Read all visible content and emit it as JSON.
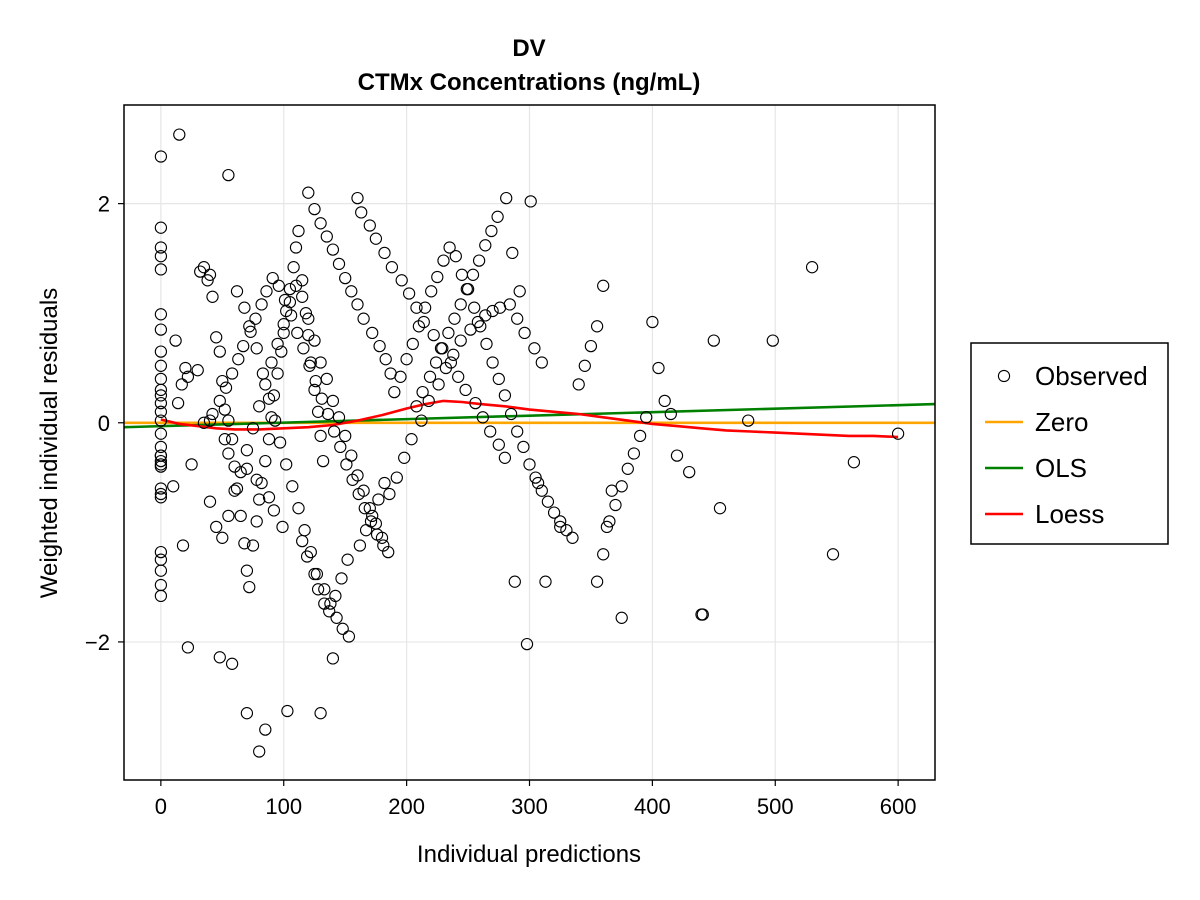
{
  "chart_data": {
    "type": "scatter",
    "title": [
      "DV",
      "CTMx Concentrations (ng/mL)"
    ],
    "xlabel": "Individual predictions",
    "ylabel": "Weighted individual residuals",
    "xlim": [
      -30,
      630
    ],
    "ylim": [
      -3.26,
      2.9
    ],
    "xticks": [
      0,
      100,
      200,
      300,
      400,
      500,
      600
    ],
    "xtick_labels": [
      "0",
      "100",
      "200",
      "300",
      "400",
      "500",
      "600"
    ],
    "yticks": [
      -2,
      0,
      2
    ],
    "ytick_labels": [
      "−2",
      "0",
      "2"
    ],
    "grid": true,
    "legend_position": "right",
    "legend": [
      {
        "label": "Observed",
        "kind": "marker",
        "color": "#000000"
      },
      {
        "label": "Zero",
        "kind": "line",
        "color": "#FFA500"
      },
      {
        "label": "OLS",
        "kind": "line",
        "color": "#008000"
      },
      {
        "label": "Loess",
        "kind": "line",
        "color": "#FF0000"
      }
    ],
    "series": [
      {
        "name": "Observed",
        "kind": "scatter",
        "color": "#000000",
        "x": [
          0,
          0,
          0,
          0,
          0,
          0,
          0,
          0,
          0,
          0,
          0,
          0,
          0,
          0,
          0,
          0,
          0,
          0,
          0,
          0,
          0,
          0,
          0,
          0,
          0,
          0,
          0,
          0,
          0,
          0,
          15,
          12,
          17,
          20,
          22,
          25,
          18,
          10,
          30,
          32,
          35,
          38,
          40,
          42,
          45,
          48,
          50,
          52,
          55,
          58,
          60,
          62,
          65,
          68,
          70,
          72,
          75,
          78,
          80,
          82,
          85,
          88,
          90,
          92,
          95,
          98,
          100,
          102,
          105,
          108,
          110,
          112,
          115,
          118,
          120,
          122,
          125,
          128,
          130,
          132,
          40,
          45,
          50,
          55,
          60,
          65,
          70,
          75,
          80,
          85,
          90,
          95,
          100,
          105,
          110,
          115,
          120,
          125,
          130,
          135,
          140,
          145,
          150,
          155,
          160,
          165,
          170,
          175,
          180,
          185,
          55,
          62,
          68,
          72,
          78,
          83,
          88,
          93,
          97,
          102,
          107,
          112,
          117,
          122,
          127,
          133,
          138,
          143,
          148,
          153,
          35,
          42,
          48,
          53,
          58,
          63,
          67,
          73,
          77,
          82,
          86,
          91,
          96,
          101,
          106,
          111,
          116,
          121,
          126,
          131,
          136,
          141,
          146,
          151,
          156,
          161,
          166,
          171,
          176,
          181,
          190,
          195,
          200,
          205,
          210,
          215,
          220,
          225,
          230,
          235,
          240,
          245,
          250,
          255,
          260,
          265,
          270,
          275,
          280,
          285,
          290,
          295,
          300,
          305,
          310,
          315,
          320,
          325,
          330,
          335,
          186,
          192,
          198,
          204,
          212,
          218,
          226,
          232,
          238,
          244,
          252,
          258,
          264,
          270,
          276,
          284,
          290,
          296,
          304,
          310,
          340,
          345,
          350,
          355,
          360,
          365,
          370,
          375,
          380,
          385,
          390,
          395,
          400,
          405,
          410,
          415,
          420,
          430,
          440,
          450,
          455,
          478,
          498,
          530,
          547,
          564,
          600,
          22,
          48,
          58,
          70,
          85,
          80,
          103,
          130,
          140,
          298,
          288,
          325,
          441,
          375,
          355,
          360,
          363,
          367,
          307,
          313,
          14,
          40,
          52,
          55,
          70,
          78,
          88,
          92,
          99,
          115,
          119,
          125,
          128,
          133,
          137,
          142,
          147,
          152,
          162,
          167,
          172,
          177,
          182,
          208,
          213,
          219,
          224,
          229,
          234,
          239,
          244,
          249,
          254,
          259,
          264,
          269,
          274,
          281,
          286,
          292,
          301,
          160,
          163,
          170,
          175,
          182,
          188,
          196,
          202,
          208,
          214,
          222,
          228,
          236,
          242,
          248,
          256,
          262,
          268,
          275,
          280,
          120,
          125,
          130,
          135,
          140,
          145,
          150,
          155,
          160,
          165,
          172,
          178,
          183,
          187
        ],
        "y": [
          2.43,
          1.78,
          1.6,
          1.52,
          1.4,
          0.99,
          0.85,
          0.65,
          0.52,
          0.3,
          0.25,
          0.18,
          0.1,
          0.02,
          -0.1,
          -0.22,
          -0.3,
          -0.38,
          -0.4,
          -0.6,
          -0.65,
          -0.68,
          -1.18,
          -1.25,
          -1.35,
          -1.48,
          -1.58,
          -0.35,
          0.4,
          -0.3,
          2.63,
          0.75,
          0.35,
          0.5,
          0.42,
          -0.38,
          -1.12,
          -0.58,
          0.48,
          1.38,
          1.42,
          1.3,
          1.35,
          1.15,
          0.78,
          0.65,
          0.38,
          0.12,
          0.02,
          -0.15,
          -0.4,
          -0.6,
          -0.85,
          -1.1,
          -1.35,
          -1.5,
          -1.12,
          -0.9,
          -0.7,
          -0.55,
          -0.35,
          -0.15,
          0.05,
          0.25,
          0.45,
          0.65,
          0.82,
          1.02,
          1.22,
          1.42,
          1.6,
          1.75,
          1.3,
          1.0,
          0.8,
          0.55,
          0.3,
          0.1,
          -0.12,
          -0.35,
          -0.72,
          -0.95,
          -1.05,
          -0.85,
          -0.62,
          -0.45,
          -0.25,
          -0.05,
          0.15,
          0.35,
          0.55,
          0.72,
          0.9,
          1.1,
          1.25,
          1.15,
          0.95,
          0.75,
          0.55,
          0.4,
          0.2,
          0.05,
          -0.12,
          -0.3,
          -0.48,
          -0.62,
          -0.78,
          -0.92,
          -1.05,
          -1.18,
          2.26,
          1.2,
          1.05,
          0.88,
          0.68,
          0.45,
          0.22,
          0.02,
          -0.18,
          -0.38,
          -0.58,
          -0.78,
          -0.98,
          -1.18,
          -1.38,
          -1.52,
          -1.65,
          -1.78,
          -1.88,
          -1.95,
          0.0,
          0.08,
          0.2,
          0.32,
          0.45,
          0.58,
          0.7,
          0.83,
          0.95,
          1.08,
          1.2,
          1.32,
          1.25,
          1.12,
          0.98,
          0.82,
          0.68,
          0.52,
          0.38,
          0.22,
          0.08,
          -0.08,
          -0.22,
          -0.38,
          -0.52,
          -0.65,
          -0.78,
          -0.9,
          -1.02,
          -1.12,
          0.28,
          0.42,
          0.58,
          0.72,
          0.88,
          1.05,
          1.2,
          1.33,
          1.48,
          1.6,
          1.52,
          1.35,
          1.22,
          1.05,
          0.88,
          0.72,
          0.55,
          0.4,
          0.25,
          0.08,
          -0.08,
          -0.22,
          -0.38,
          -0.5,
          -0.62,
          -0.72,
          -0.82,
          -0.9,
          -0.98,
          -1.05,
          -0.65,
          -0.5,
          -0.32,
          -0.15,
          0.02,
          0.2,
          0.35,
          0.5,
          0.62,
          0.75,
          0.85,
          0.92,
          0.98,
          1.02,
          1.05,
          1.08,
          0.95,
          0.82,
          0.68,
          0.55,
          0.35,
          0.52,
          0.7,
          0.88,
          1.25,
          -0.9,
          -0.75,
          -0.58,
          -0.42,
          -0.28,
          -0.12,
          0.05,
          0.92,
          0.5,
          0.2,
          0.08,
          -0.3,
          -0.45,
          -1.75,
          0.75,
          -0.78,
          0.02,
          0.75,
          1.42,
          -1.2,
          -0.36,
          -0.1,
          -2.05,
          -2.14,
          -2.2,
          -2.65,
          -2.8,
          -3.0,
          -2.63,
          -2.65,
          -2.15,
          -2.02,
          -1.45,
          -0.95,
          -1.75,
          -1.78,
          -1.45,
          -1.2,
          -0.95,
          -0.62,
          -0.55,
          -1.45,
          0.18,
          0.02,
          -0.15,
          -0.28,
          -0.42,
          -0.52,
          -0.68,
          -0.8,
          -0.95,
          -1.08,
          -1.22,
          -1.38,
          -1.52,
          -1.65,
          -1.72,
          -1.58,
          -1.42,
          -1.25,
          -1.12,
          -0.98,
          -0.85,
          -0.7,
          -0.55,
          0.15,
          0.28,
          0.42,
          0.55,
          0.68,
          0.82,
          0.95,
          1.08,
          1.22,
          1.35,
          1.48,
          1.62,
          1.75,
          1.88,
          2.05,
          1.55,
          1.2,
          2.02,
          2.05,
          1.92,
          1.8,
          1.68,
          1.55,
          1.42,
          1.3,
          1.18,
          1.05,
          0.92,
          0.8,
          0.68,
          0.55,
          0.42,
          0.3,
          0.18,
          0.05,
          -0.08,
          -0.2,
          -0.32,
          2.1,
          1.95,
          1.82,
          1.7,
          1.58,
          1.45,
          1.32,
          1.2,
          1.08,
          0.95,
          0.82,
          0.7,
          0.58,
          0.45
        ]
      },
      {
        "name": "Zero",
        "kind": "line",
        "color": "#FFA500",
        "x": [
          -30,
          630
        ],
        "y": [
          0,
          0
        ]
      },
      {
        "name": "OLS",
        "kind": "line",
        "color": "#008000",
        "x": [
          -30,
          630
        ],
        "y": [
          -0.04,
          0.17
        ]
      },
      {
        "name": "Loess",
        "kind": "line",
        "color": "#FF0000",
        "x": [
          0,
          15,
          30,
          45,
          60,
          80,
          100,
          120,
          140,
          160,
          180,
          200,
          215,
          230,
          245,
          260,
          280,
          300,
          320,
          340,
          360,
          380,
          400,
          420,
          440,
          460,
          480,
          500,
          520,
          540,
          560,
          580,
          600
        ],
        "y": [
          0.03,
          -0.01,
          -0.03,
          -0.05,
          -0.06,
          -0.06,
          -0.05,
          -0.04,
          -0.02,
          0.02,
          0.07,
          0.13,
          0.17,
          0.2,
          0.19,
          0.17,
          0.15,
          0.12,
          0.1,
          0.08,
          0.05,
          0.02,
          -0.01,
          -0.03,
          -0.05,
          -0.07,
          -0.08,
          -0.09,
          -0.1,
          -0.11,
          -0.12,
          -0.12,
          -0.13
        ]
      }
    ]
  }
}
